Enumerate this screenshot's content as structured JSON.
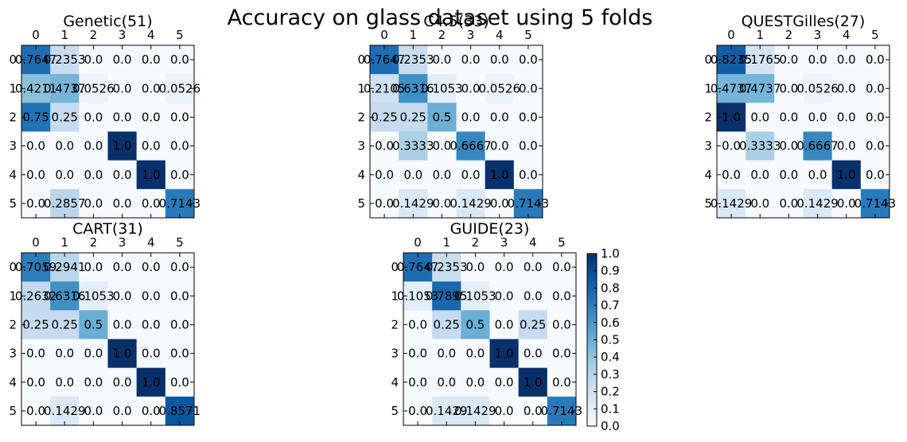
{
  "title": "Accuracy on glass dataset using 5 folds",
  "colormap": [
    "#f7fbff",
    "#deebf7",
    "#c6dbef",
    "#9ecae1",
    "#6baed6",
    "#4292c6",
    "#2171b5",
    "#08519c",
    "#08306b"
  ],
  "chart_data": [
    {
      "type": "heatmap",
      "title": "Genetic(51)",
      "x": [
        "0",
        "1",
        "2",
        "3",
        "4",
        "5"
      ],
      "y": [
        "0",
        "1",
        "2",
        "3",
        "4",
        "5"
      ],
      "values": [
        [
          "0.7647",
          "0.2353",
          "0.0",
          "0.0",
          "0.0",
          "0.0"
        ],
        [
          "0.4211",
          "0.4737",
          "0.0526",
          "0.0",
          "0.0",
          "0.0526"
        ],
        [
          "0.75",
          "0.25",
          "0.0",
          "0.0",
          "0.0",
          "0.0"
        ],
        [
          "0.0",
          "0.0",
          "0.0",
          "1.0",
          "0.0",
          "0.0"
        ],
        [
          "0.0",
          "0.0",
          "0.0",
          "0.0",
          "1.0",
          "0.0"
        ],
        [
          "0.0",
          "0.2857",
          "0.0",
          "0.0",
          "0.0",
          "0.7143"
        ]
      ]
    },
    {
      "type": "heatmap",
      "title": "C4.5(33)",
      "x": [
        "0",
        "1",
        "2",
        "3",
        "4",
        "5"
      ],
      "y": [
        "0",
        "1",
        "2",
        "3",
        "4",
        "5"
      ],
      "values": [
        [
          "0.7647",
          "0.2353",
          "0.0",
          "0.0",
          "0.0",
          "0.0"
        ],
        [
          "0.2105",
          "0.6316",
          "0.1053",
          "0.0",
          "0.0526",
          "0.0"
        ],
        [
          "0.25",
          "0.25",
          "0.5",
          "0.0",
          "0.0",
          "0.0"
        ],
        [
          "0.0",
          "0.3333",
          "0.0",
          "0.6667",
          "0.0",
          "0.0"
        ],
        [
          "0.0",
          "0.0",
          "0.0",
          "0.0",
          "1.0",
          "0.0"
        ],
        [
          "0.0",
          "0.1429",
          "0.0",
          "0.1429",
          "0.0",
          "0.7143"
        ]
      ]
    },
    {
      "type": "heatmap",
      "title": "QUESTGilles(27)",
      "x": [
        "0",
        "1",
        "2",
        "3",
        "4",
        "5"
      ],
      "y": [
        "0",
        "1",
        "2",
        "3",
        "4",
        "5"
      ],
      "values": [
        [
          "0.8235",
          "0.1765",
          "0.0",
          "0.0",
          "0.0",
          "0.0"
        ],
        [
          "0.4737",
          "0.4737",
          "0.0",
          "0.0526",
          "0.0",
          "0.0"
        ],
        [
          "1.0",
          "0.0",
          "0.0",
          "0.0",
          "0.0",
          "0.0"
        ],
        [
          "0.0",
          "0.3333",
          "0.0",
          "0.6667",
          "0.0",
          "0.0"
        ],
        [
          "0.0",
          "0.0",
          "0.0",
          "0.0",
          "1.0",
          "0.0"
        ],
        [
          "0.1429",
          "0.0",
          "0.0",
          "0.1429",
          "0.0",
          "0.7143"
        ]
      ]
    },
    {
      "type": "heatmap",
      "title": "CART(31)",
      "x": [
        "0",
        "1",
        "2",
        "3",
        "4",
        "5"
      ],
      "y": [
        "0",
        "1",
        "2",
        "3",
        "4",
        "5"
      ],
      "values": [
        [
          "0.7059",
          "0.2941",
          "0.0",
          "0.0",
          "0.0",
          "0.0"
        ],
        [
          "0.2632",
          "0.6316",
          "0.1053",
          "0.0",
          "0.0",
          "0.0"
        ],
        [
          "0.25",
          "0.25",
          "0.5",
          "0.0",
          "0.0",
          "0.0"
        ],
        [
          "0.0",
          "0.0",
          "0.0",
          "1.0",
          "0.0",
          "0.0"
        ],
        [
          "0.0",
          "0.0",
          "0.0",
          "0.0",
          "1.0",
          "0.0"
        ],
        [
          "0.0",
          "0.1429",
          "0.0",
          "0.0",
          "0.0",
          "0.8571"
        ]
      ]
    },
    {
      "type": "heatmap",
      "title": "GUIDE(23)",
      "x": [
        "0",
        "1",
        "2",
        "3",
        "4",
        "5"
      ],
      "y": [
        "0",
        "1",
        "2",
        "3",
        "4",
        "5"
      ],
      "values": [
        [
          "0.7647",
          "0.2353",
          "0.0",
          "0.0",
          "0.0",
          "0.0"
        ],
        [
          "0.1053",
          "0.7895",
          "0.1053",
          "0.0",
          "0.0",
          "0.0"
        ],
        [
          "0.0",
          "0.25",
          "0.5",
          "0.0",
          "0.25",
          "0.0"
        ],
        [
          "0.0",
          "0.0",
          "0.0",
          "1.0",
          "0.0",
          "0.0"
        ],
        [
          "0.0",
          "0.0",
          "0.0",
          "0.0",
          "1.0",
          "0.0"
        ],
        [
          "0.0",
          "0.1429",
          "0.1429",
          "0.0",
          "0.0",
          "0.7143"
        ]
      ]
    }
  ],
  "colorbar": {
    "range": [
      0,
      1
    ],
    "ticks": [
      "0.0",
      "0.1",
      "0.2",
      "0.3",
      "0.4",
      "0.5",
      "0.6",
      "0.7",
      "0.8",
      "0.9",
      "1.0"
    ]
  }
}
